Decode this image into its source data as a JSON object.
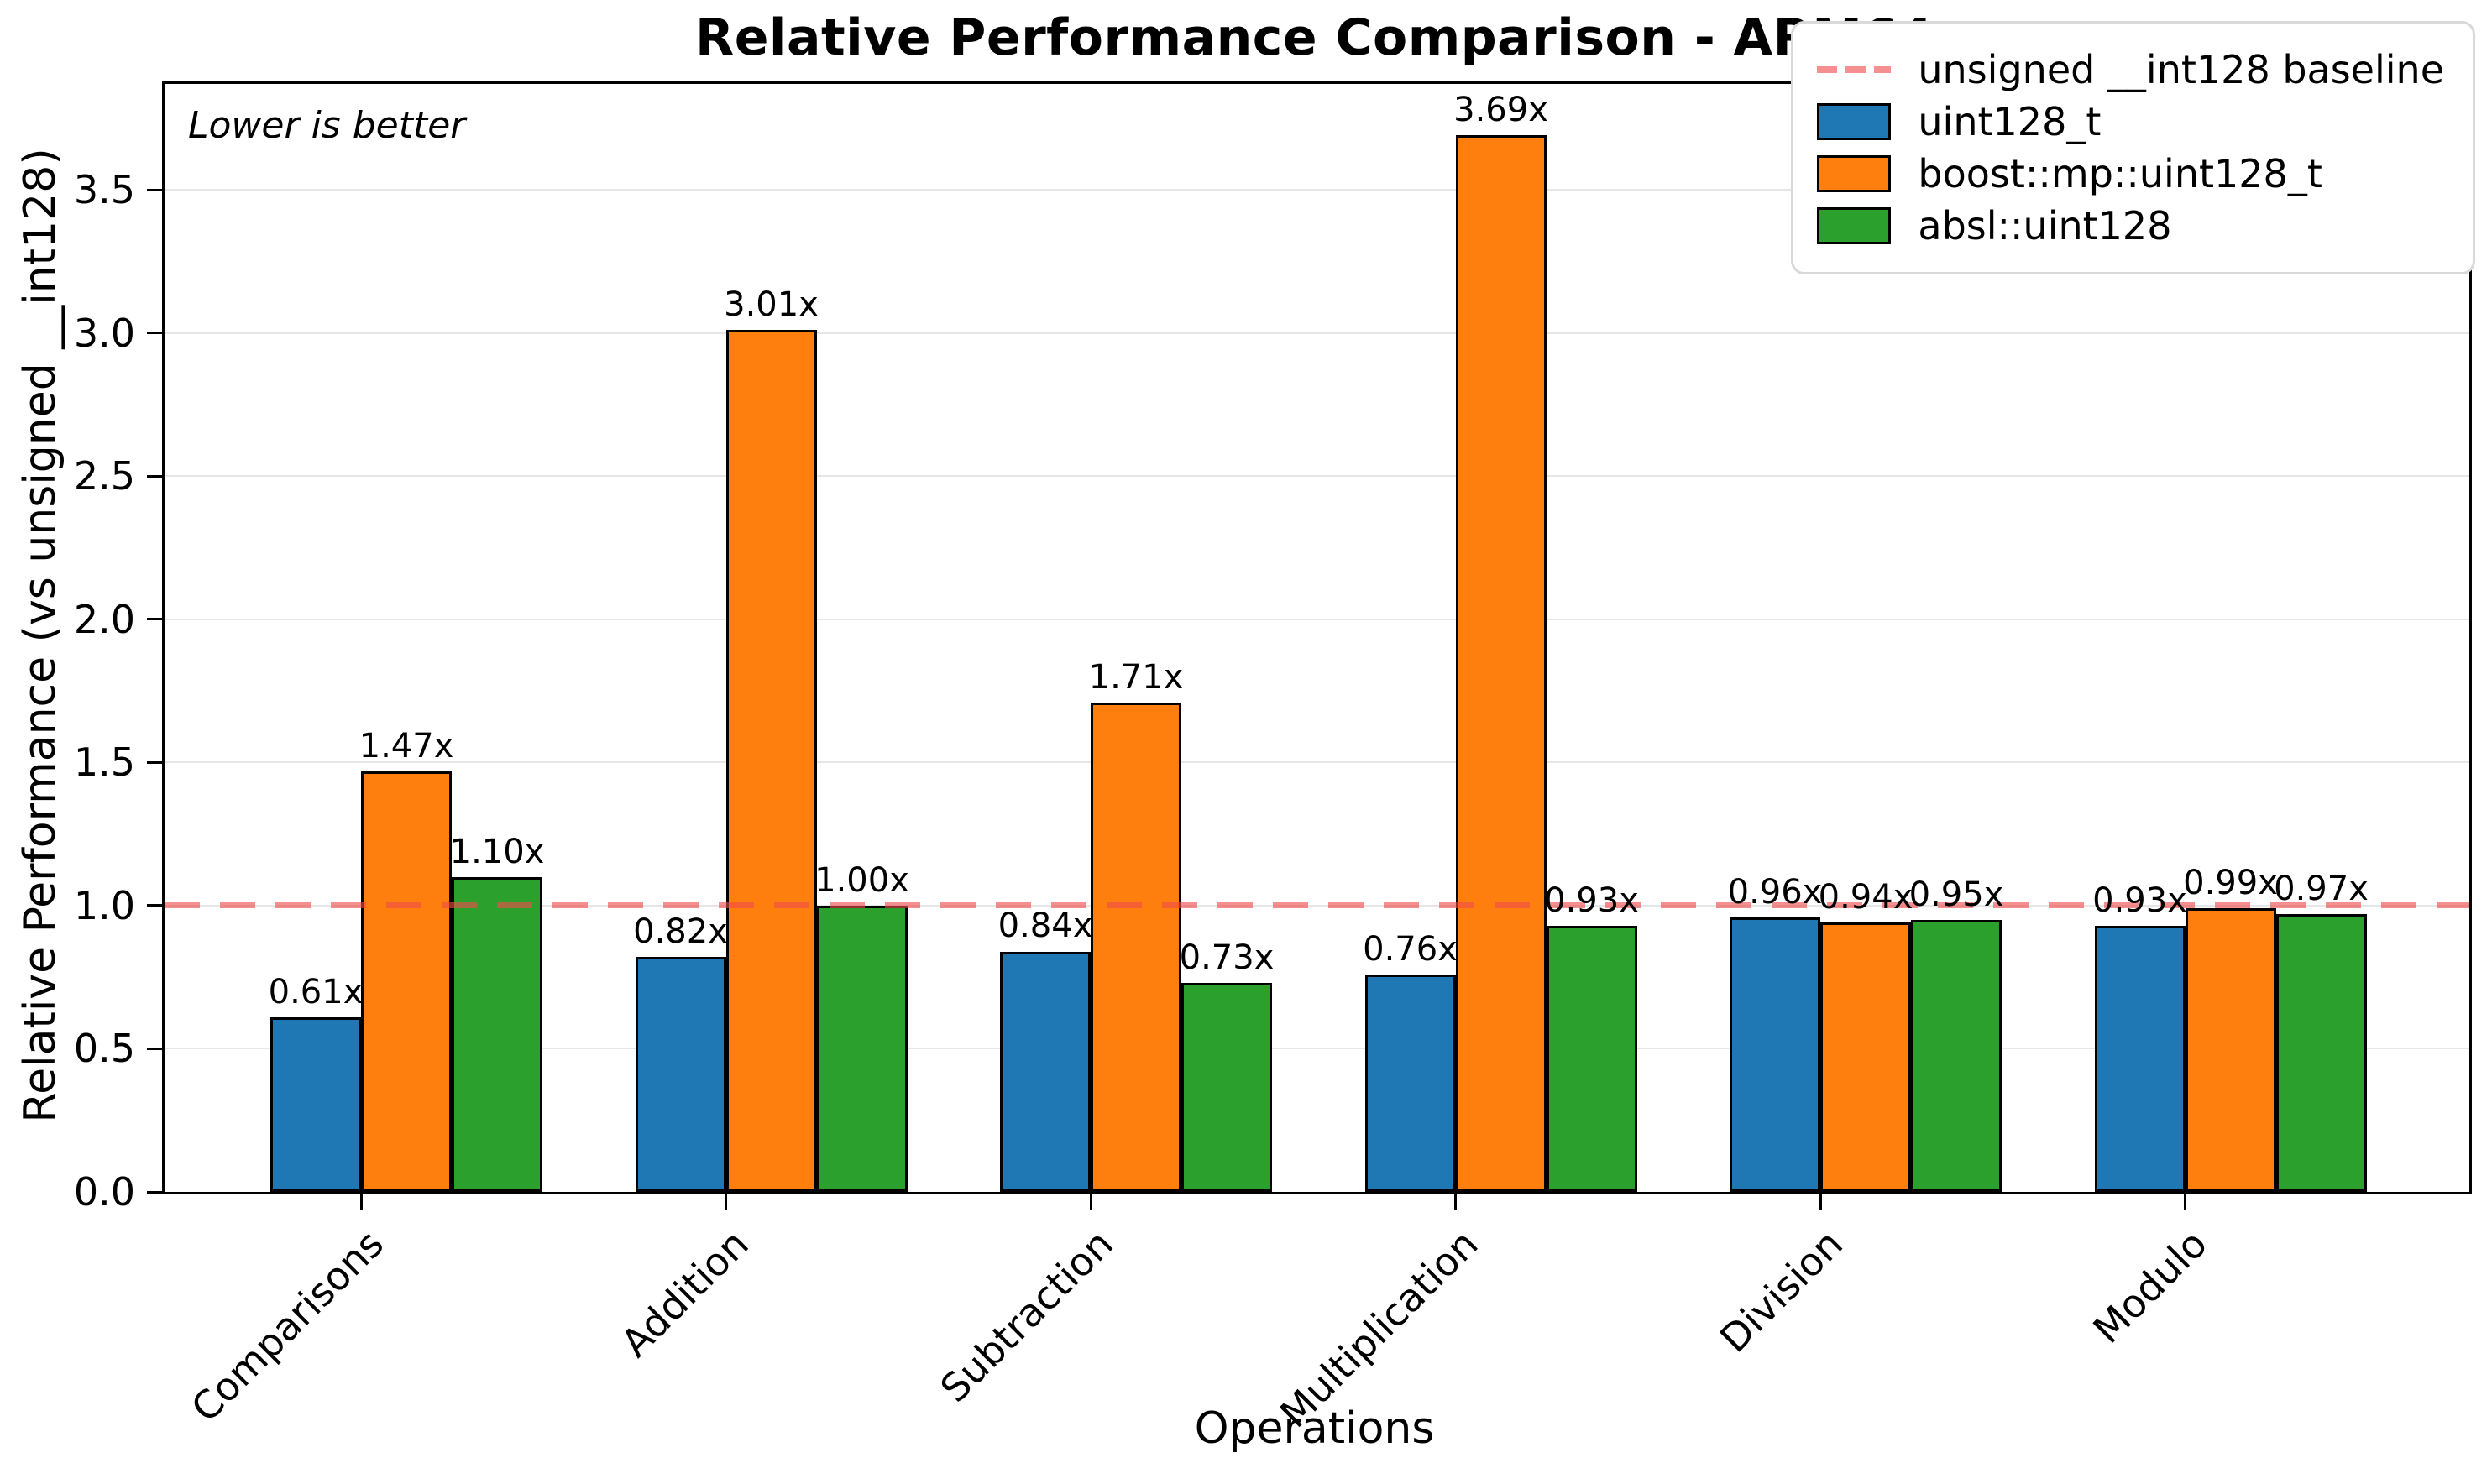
{
  "title": "Relative Performance Comparison - ARM64",
  "note": "Lower is better",
  "legend": {
    "baseline_label": "unsigned __int128 baseline"
  },
  "chart_data": {
    "type": "bar",
    "title": "Relative Performance Comparison - ARM64",
    "xlabel": "Operations",
    "ylabel": "Relative Performance (vs unsigned __int128)",
    "annotation": "Lower is better",
    "categories": [
      "Comparisons",
      "Addition",
      "Subtraction",
      "Multiplication",
      "Division",
      "Modulo"
    ],
    "series": [
      {
        "name": "uint128_t",
        "color": "#1f77b4",
        "values": [
          0.61,
          0.82,
          0.84,
          0.76,
          0.96,
          0.93
        ]
      },
      {
        "name": "boost::mp::uint128_t",
        "color": "#ff7f0e",
        "values": [
          1.47,
          3.01,
          1.71,
          3.69,
          0.94,
          0.99
        ]
      },
      {
        "name": "absl::uint128",
        "color": "#2ca02c",
        "values": [
          1.1,
          1.0,
          0.73,
          0.93,
          0.95,
          0.97
        ]
      }
    ],
    "value_label_suffix": "x",
    "value_label_decimals": 2,
    "baseline": {
      "value": 1.0,
      "label": "unsigned __int128 baseline",
      "color": "#f04b4b",
      "style": "dashed"
    },
    "yticks": [
      0.0,
      0.5,
      1.0,
      1.5,
      2.0,
      2.5,
      3.0,
      3.5
    ],
    "ylim": [
      0,
      3.87
    ],
    "grid": "y",
    "legend_position": "upper right",
    "bar_edge_color": "#000000",
    "grid_color": "#e6e6e6"
  }
}
